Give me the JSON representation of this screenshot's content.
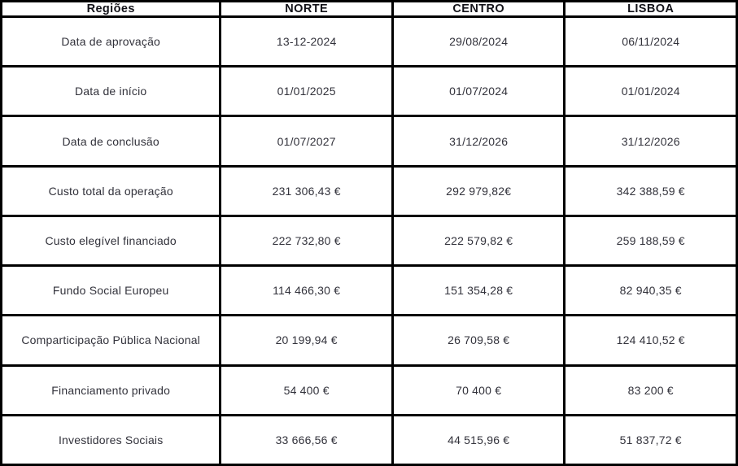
{
  "chart_data": {
    "type": "table",
    "title": "",
    "columns": [
      "Regiões",
      "NORTE",
      "CENTRO",
      "LISBOA"
    ],
    "rows": [
      [
        "Data de aprovação",
        "13-12-2024",
        "29/08/2024",
        "06/11/2024"
      ],
      [
        "Data de início",
        "01/01/2025",
        "01/07/2024",
        "01/01/2024"
      ],
      [
        "Data de conclusão",
        "01/07/2027",
        "31/12/2026",
        "31/12/2026"
      ],
      [
        "Custo total da operação",
        "231 306,43 €",
        "292 979,82€",
        "342 388,59 €"
      ],
      [
        "Custo elegível financiado",
        "222 732,80 €",
        "222 579,82 €",
        "259 188,59 €"
      ],
      [
        "Fundo Social Europeu",
        "114 466,30 €",
        "151 354,28 €",
        "82 940,35 €"
      ],
      [
        "Comparticipação Pública Nacional",
        "20 199,94 €",
        "26 709,58 €",
        "124 410,52 €"
      ],
      [
        "Financiamento privado",
        "54 400 €",
        "70 400 €",
        "83 200 €"
      ],
      [
        "Investidores Sociais",
        "33 666,56 €",
        "44 515,96 €",
        "51 837,72 €"
      ]
    ],
    "numeric": {
      "categories": [
        "NORTE",
        "CENTRO",
        "LISBOA"
      ],
      "series": [
        {
          "name": "Custo total da operação (€)",
          "values": [
            231306.43,
            292979.82,
            342388.59
          ]
        },
        {
          "name": "Custo elegível financiado (€)",
          "values": [
            222732.8,
            222579.82,
            259188.59
          ]
        },
        {
          "name": "Fundo Social Europeu (€)",
          "values": [
            114466.3,
            151354.28,
            82940.35
          ]
        },
        {
          "name": "Comparticipação Pública Nacional (€)",
          "values": [
            20199.94,
            26709.58,
            124410.52
          ]
        },
        {
          "name": "Financiamento privado (€)",
          "values": [
            54400,
            70400,
            83200
          ]
        },
        {
          "name": "Investidores Sociais (€)",
          "values": [
            33666.56,
            44515.96,
            51837.72
          ]
        }
      ]
    }
  },
  "colors": {
    "border": "#000000",
    "background": "#ffffff",
    "header_text": "#121218",
    "body_text": "#32323b"
  }
}
